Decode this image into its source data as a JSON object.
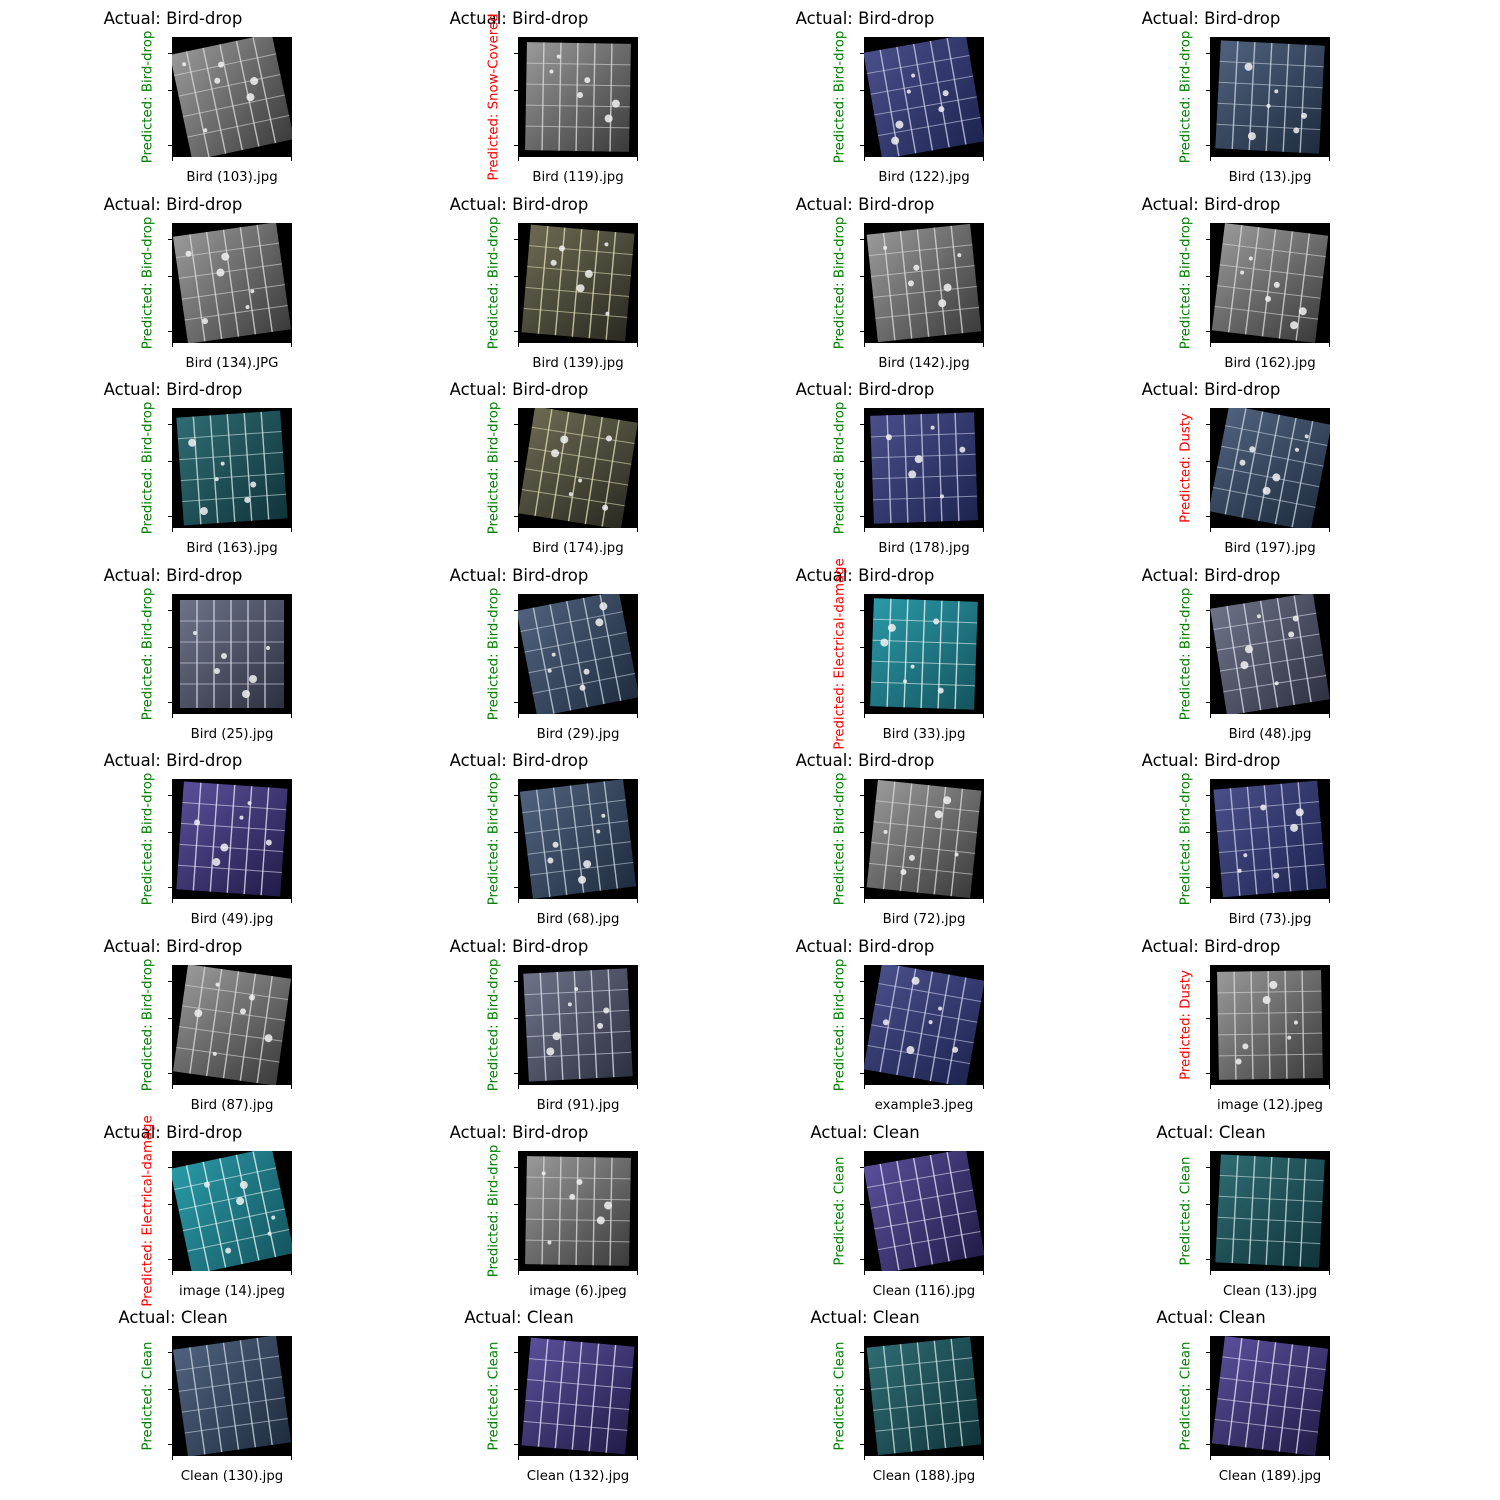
{
  "colors": {
    "correct": "#008000",
    "incorrect": "#ff0000"
  },
  "panels": [
    {
      "actual": "Actual: Bird-drop",
      "predicted": "Predicted: Bird-drop",
      "correct": true,
      "file": "Bird (103).jpg",
      "tone": "gray",
      "icon": "solar-panel-photo"
    },
    {
      "actual": "Actual: Bird-drop",
      "predicted": "Predicted: Snow-Covered",
      "correct": false,
      "file": "Bird (119).jpg",
      "tone": "gray",
      "icon": "solar-panel-photo"
    },
    {
      "actual": "Actual: Bird-drop",
      "predicted": "Predicted: Bird-drop",
      "correct": true,
      "file": "Bird (122).jpg",
      "tone": "navy",
      "icon": "solar-panel-photo"
    },
    {
      "actual": "Actual: Bird-drop",
      "predicted": "Predicted: Bird-drop",
      "correct": true,
      "file": "Bird (13).jpg",
      "tone": "steel",
      "icon": "solar-panel-photo"
    },
    {
      "actual": "Actual: Bird-drop",
      "predicted": "Predicted: Bird-drop",
      "correct": true,
      "file": "Bird (134).JPG",
      "tone": "gray",
      "icon": "solar-panel-photo"
    },
    {
      "actual": "Actual: Bird-drop",
      "predicted": "Predicted: Bird-drop",
      "correct": true,
      "file": "Bird (139).jpg",
      "tone": "olive",
      "icon": "solar-panel-photo"
    },
    {
      "actual": "Actual: Bird-drop",
      "predicted": "Predicted: Bird-drop",
      "correct": true,
      "file": "Bird (142).jpg",
      "tone": "gray",
      "icon": "solar-panel-photo"
    },
    {
      "actual": "Actual: Bird-drop",
      "predicted": "Predicted: Bird-drop",
      "correct": true,
      "file": "Bird (162).jpg",
      "tone": "gray",
      "icon": "solar-panel-photo"
    },
    {
      "actual": "Actual: Bird-drop",
      "predicted": "Predicted: Bird-drop",
      "correct": true,
      "file": "Bird (163).jpg",
      "tone": "teal",
      "icon": "solar-panel-photo"
    },
    {
      "actual": "Actual: Bird-drop",
      "predicted": "Predicted: Bird-drop",
      "correct": true,
      "file": "Bird (174).jpg",
      "tone": "olive",
      "icon": "solar-panel-photo"
    },
    {
      "actual": "Actual: Bird-drop",
      "predicted": "Predicted: Bird-drop",
      "correct": true,
      "file": "Bird (178).jpg",
      "tone": "navy",
      "icon": "solar-panel-photo"
    },
    {
      "actual": "Actual: Bird-drop",
      "predicted": "Predicted: Dusty",
      "correct": false,
      "file": "Bird (197).jpg",
      "tone": "steel",
      "icon": "solar-panel-photo"
    },
    {
      "actual": "Actual: Bird-drop",
      "predicted": "Predicted: Bird-drop",
      "correct": true,
      "file": "Bird (25).jpg",
      "tone": "slate",
      "icon": "solar-panel-photo"
    },
    {
      "actual": "Actual: Bird-drop",
      "predicted": "Predicted: Bird-drop",
      "correct": true,
      "file": "Bird (29).jpg",
      "tone": "steel",
      "icon": "solar-panel-photo"
    },
    {
      "actual": "Actual: Bird-drop",
      "predicted": "Predicted: Electrical-damage",
      "correct": false,
      "file": "Bird (33).jpg",
      "tone": "cyan",
      "icon": "solar-panel-photo"
    },
    {
      "actual": "Actual: Bird-drop",
      "predicted": "Predicted: Bird-drop",
      "correct": true,
      "file": "Bird (48).jpg",
      "tone": "slate",
      "icon": "solar-panel-photo"
    },
    {
      "actual": "Actual: Bird-drop",
      "predicted": "Predicted: Bird-drop",
      "correct": true,
      "file": "Bird (49).jpg",
      "tone": "purple",
      "icon": "solar-panel-photo"
    },
    {
      "actual": "Actual: Bird-drop",
      "predicted": "Predicted: Bird-drop",
      "correct": true,
      "file": "Bird (68).jpg",
      "tone": "steel",
      "icon": "solar-panel-photo"
    },
    {
      "actual": "Actual: Bird-drop",
      "predicted": "Predicted: Bird-drop",
      "correct": true,
      "file": "Bird (72).jpg",
      "tone": "gray",
      "icon": "solar-panel-photo"
    },
    {
      "actual": "Actual: Bird-drop",
      "predicted": "Predicted: Bird-drop",
      "correct": true,
      "file": "Bird (73).jpg",
      "tone": "navy",
      "icon": "solar-panel-photo"
    },
    {
      "actual": "Actual: Bird-drop",
      "predicted": "Predicted: Bird-drop",
      "correct": true,
      "file": "Bird (87).jpg",
      "tone": "gray",
      "icon": "solar-panel-photo"
    },
    {
      "actual": "Actual: Bird-drop",
      "predicted": "Predicted: Bird-drop",
      "correct": true,
      "file": "Bird (91).jpg",
      "tone": "slate",
      "icon": "solar-panel-photo"
    },
    {
      "actual": "Actual: Bird-drop",
      "predicted": "Predicted: Bird-drop",
      "correct": true,
      "file": "example3.jpeg",
      "tone": "navy",
      "icon": "solar-panel-photo"
    },
    {
      "actual": "Actual: Bird-drop",
      "predicted": "Predicted: Dusty",
      "correct": false,
      "file": "image (12).jpeg",
      "tone": "gray",
      "icon": "solar-panel-photo"
    },
    {
      "actual": "Actual: Bird-drop",
      "predicted": "Predicted: Electrical-damage",
      "correct": false,
      "file": "image (14).jpeg",
      "tone": "cyan",
      "icon": "solar-panel-photo"
    },
    {
      "actual": "Actual: Bird-drop",
      "predicted": "Predicted: Bird-drop",
      "correct": true,
      "file": "image (6).jpeg",
      "tone": "gray",
      "icon": "solar-panel-photo"
    },
    {
      "actual": "Actual: Clean",
      "predicted": "Predicted: Clean",
      "correct": true,
      "file": "Clean (116).jpg",
      "tone": "purple",
      "icon": "solar-panel-photo"
    },
    {
      "actual": "Actual: Clean",
      "predicted": "Predicted: Clean",
      "correct": true,
      "file": "Clean (13).jpg",
      "tone": "teal",
      "icon": "solar-panel-photo"
    },
    {
      "actual": "Actual: Clean",
      "predicted": "Predicted: Clean",
      "correct": true,
      "file": "Clean (130).jpg",
      "tone": "steel",
      "icon": "solar-panel-photo"
    },
    {
      "actual": "Actual: Clean",
      "predicted": "Predicted: Clean",
      "correct": true,
      "file": "Clean (132).jpg",
      "tone": "purple",
      "icon": "solar-panel-photo"
    },
    {
      "actual": "Actual: Clean",
      "predicted": "Predicted: Clean",
      "correct": true,
      "file": "Clean (188).jpg",
      "tone": "teal",
      "icon": "solar-panel-photo"
    },
    {
      "actual": "Actual: Clean",
      "predicted": "Predicted: Clean",
      "correct": true,
      "file": "Clean (189).jpg",
      "tone": "purple",
      "icon": "solar-panel-photo"
    }
  ]
}
